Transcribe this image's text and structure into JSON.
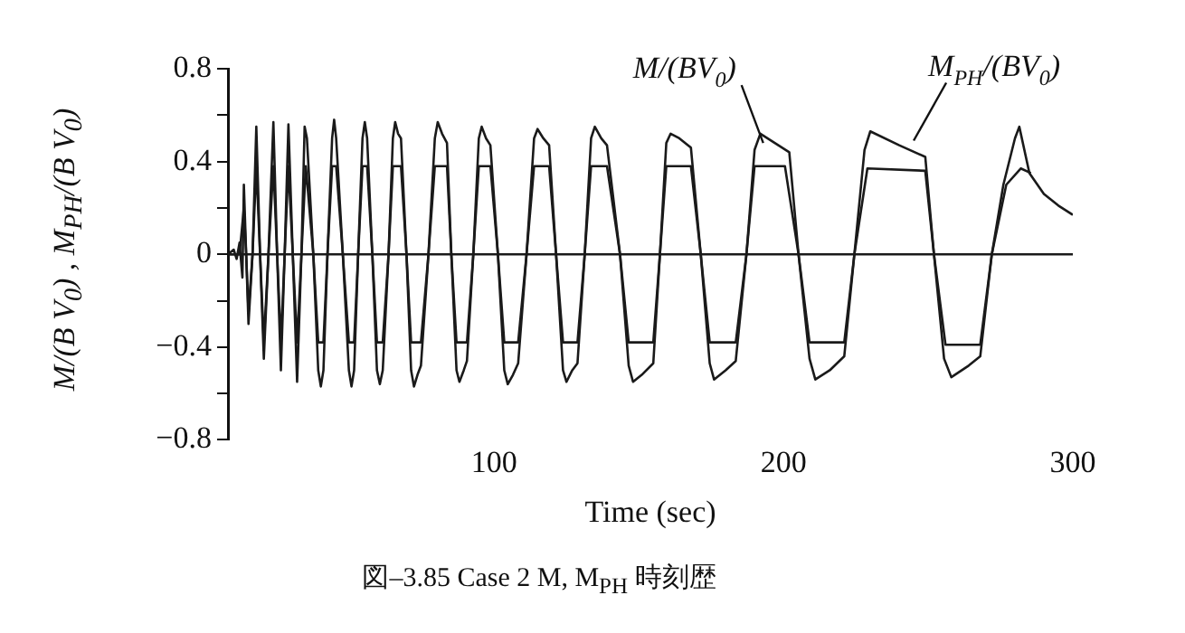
{
  "chart_data": {
    "type": "line",
    "xlabel": "Time (sec)",
    "ylabel": "M/(B V$_{0}$) , M$_{PH}$/(B V$_{0}$)",
    "xlim": [
      8,
      300
    ],
    "xticks": [
      100,
      200,
      300
    ],
    "ylim": [
      -0.8,
      0.8
    ],
    "yticks": [
      -0.8,
      {
        "value": -0.6,
        "label": null
      },
      -0.4,
      {
        "value": -0.2,
        "label": null
      },
      0,
      {
        "value": 0.2,
        "label": null
      },
      0.4,
      {
        "value": 0.6,
        "label": null
      },
      0.8
    ],
    "grid": false,
    "legend": false,
    "ref_lines": [
      {
        "axis": "y",
        "value": 0,
        "color": "#1a1a1a"
      }
    ],
    "series": [
      {
        "color": "#1a1a1a",
        "x": [
          8,
          10,
          11,
          12,
          13,
          13.5,
          14.3,
          15.1,
          16.5,
          17.8,
          19.1,
          20.4,
          22,
          23.7,
          25,
          26.3,
          27.6,
          28.9,
          30.4,
          31.9,
          33.4,
          34.5,
          35.3,
          37.5,
          39.2,
          40.1,
          41,
          42.4,
          44,
          44.7,
          45.4,
          47.7,
          49.8,
          50.7,
          51.6,
          53,
          54.5,
          55.3,
          56.1,
          57.9,
          59.5,
          60.5,
          61.5,
          63.5,
          65,
          65.8,
          66.8,
          67.8,
          69.7,
          71.3,
          72.3,
          73.5,
          74.7,
          77.3,
          79.5,
          80.5,
          82,
          83.7,
          85.2,
          87,
          88,
          89.5,
          90.6,
          92.8,
          94.7,
          95.7,
          97.2,
          98.7,
          101.3,
          103.5,
          104.7,
          106.5,
          108.3,
          111.2,
          113.8,
          115,
          117,
          119,
          121.4,
          123.8,
          125,
          127,
          128.8,
          131.3,
          133.5,
          134.8,
          137,
          139,
          143.5,
          146.5,
          148,
          151,
          155,
          157.3,
          159.5,
          161,
          164,
          168,
          171.4,
          174.5,
          176,
          180,
          183.5,
          187.2,
          190,
          192,
          197,
          202,
          205.2,
          209,
          211,
          216,
          221,
          224.5,
          228,
          230,
          240,
          249,
          252,
          255.5,
          258,
          264,
          268,
          272,
          276,
          280,
          281.5,
          285,
          290,
          295,
          300
        ],
        "values": [
          0,
          0.02,
          -0.02,
          0.05,
          -0.1,
          0.3,
          0,
          -0.3,
          0,
          0.55,
          0,
          -0.45,
          0,
          0.57,
          0,
          -0.5,
          0,
          0.56,
          0,
          -0.55,
          0,
          0.55,
          0.5,
          0,
          -0.5,
          -0.57,
          -0.5,
          0,
          0.5,
          0.58,
          0.5,
          0,
          -0.5,
          -0.57,
          -0.5,
          0,
          0.5,
          0.57,
          0.5,
          0,
          -0.5,
          -0.56,
          -0.5,
          0,
          0.5,
          0.57,
          0.52,
          0.5,
          0,
          -0.5,
          -0.57,
          -0.52,
          -0.48,
          0,
          0.5,
          0.57,
          0.52,
          0.48,
          0,
          -0.5,
          -0.55,
          -0.5,
          -0.46,
          0,
          0.5,
          0.55,
          0.5,
          0.47,
          0,
          -0.5,
          -0.56,
          -0.52,
          -0.47,
          0,
          0.5,
          0.54,
          0.5,
          0.47,
          0,
          -0.5,
          -0.55,
          -0.5,
          -0.47,
          0,
          0.5,
          0.55,
          0.5,
          0.47,
          0,
          -0.48,
          -0.55,
          -0.52,
          -0.47,
          0,
          0.48,
          0.52,
          0.5,
          0.46,
          0,
          -0.47,
          -0.54,
          -0.5,
          -0.46,
          0,
          0.45,
          0.52,
          0.48,
          0.44,
          0,
          -0.45,
          -0.54,
          -0.5,
          -0.44,
          0,
          0.45,
          0.53,
          0.47,
          0.42,
          0,
          -0.45,
          -0.53,
          -0.48,
          -0.44,
          0,
          0.3,
          0.5,
          0.55,
          0.35,
          0.26,
          0.21,
          0.17
        ]
      },
      {
        "color": "#1a1a1a",
        "x": [
          8,
          12,
          13.5,
          14.3,
          15.1,
          16.5,
          17.8,
          19.1,
          20.4,
          22,
          23.7,
          25,
          26.3,
          27.6,
          28.9,
          30.4,
          31.9,
          33.4,
          34.9,
          37.5,
          39.2,
          41,
          42.4,
          44,
          45.4,
          47.7,
          49.8,
          51.6,
          53,
          54.5,
          56.1,
          57.9,
          59.5,
          61.5,
          63.5,
          65,
          67.8,
          69.7,
          71.3,
          74.7,
          77.3,
          79.5,
          83.7,
          85.2,
          87,
          90.6,
          92.8,
          94.7,
          98.7,
          101.3,
          103.5,
          108.3,
          111.2,
          113.8,
          119,
          121.4,
          123.8,
          128.8,
          131.3,
          133.5,
          139,
          143.5,
          146.5,
          155,
          157.3,
          159.5,
          168,
          171.4,
          174.5,
          183.5,
          187.2,
          190,
          200.5,
          205.2,
          209,
          221,
          224.5,
          229,
          249,
          252,
          256,
          268,
          272,
          277,
          282,
          285.5
        ],
        "values": [
          0,
          0,
          0.2,
          0,
          -0.25,
          0,
          0.38,
          0,
          -0.38,
          0,
          0.38,
          0,
          -0.38,
          0,
          0.38,
          0,
          -0.38,
          0,
          0.38,
          0,
          -0.38,
          -0.38,
          0,
          0.38,
          0.38,
          0,
          -0.38,
          -0.38,
          0,
          0.38,
          0.38,
          0,
          -0.38,
          -0.38,
          0,
          0.38,
          0.38,
          0,
          -0.38,
          -0.38,
          0,
          0.38,
          0.38,
          0,
          -0.38,
          -0.38,
          0,
          0.38,
          0.38,
          0,
          -0.38,
          -0.38,
          0,
          0.38,
          0.38,
          0,
          -0.38,
          -0.38,
          0,
          0.38,
          0.38,
          0,
          -0.38,
          -0.38,
          0,
          0.38,
          0.38,
          0,
          -0.38,
          -0.38,
          0,
          0.38,
          0.38,
          0,
          -0.38,
          -0.38,
          0,
          0.37,
          0.36,
          0,
          -0.39,
          -0.39,
          0,
          0.3,
          0.37,
          0.35
        ]
      }
    ],
    "annotations": [
      {
        "text": "M/(BV$_{0}$)",
        "x": 193,
        "y": 0.48
      },
      {
        "text": "M$_{PH}$/(BV$_{0}$)",
        "x": 245,
        "y": 0.49
      },
      "図–3.85 Case 2 M, M$_{PH}$ 時刻歴"
    ]
  }
}
